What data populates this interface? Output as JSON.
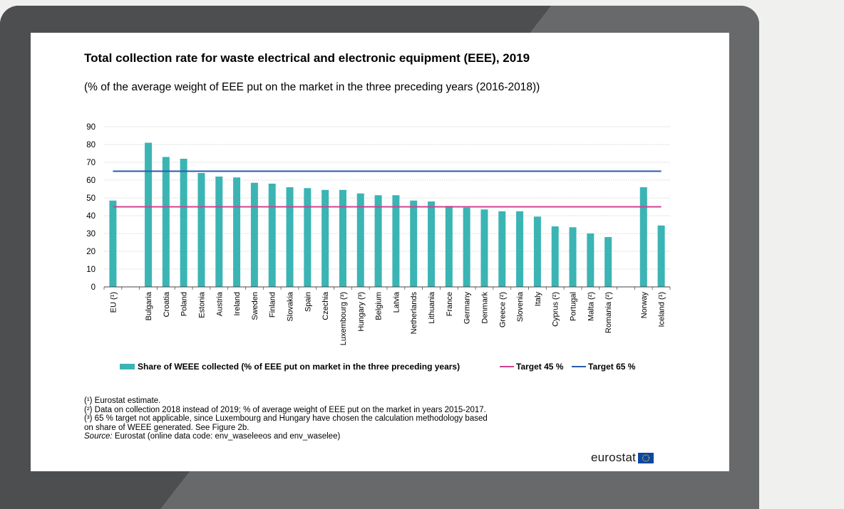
{
  "header": {
    "title": "Total collection rate for waste electrical and electronic equipment (EEE), 2019",
    "subtitle": "(% of the average weight of EEE put on the market in the three preceding years (2016-2018))"
  },
  "chart_data": {
    "type": "bar",
    "title": "Total collection rate for waste electrical and electronic equipment (EEE), 2019",
    "ylim": [
      0,
      90
    ],
    "yticks": [
      0,
      10,
      20,
      30,
      40,
      50,
      60,
      70,
      80,
      90
    ],
    "grid": true,
    "legend_position": "bottom",
    "categories": [
      "EU (¹)",
      "",
      "Bulgaria",
      "Croatia",
      "Poland",
      "Estonia",
      "Austria",
      "Ireland",
      "Sweden",
      "Finland",
      "Slovakia",
      "Spain",
      "Czechia",
      "Luxembourg (³)",
      "Hungary (³)",
      "Belgium",
      "Latvia",
      "Netherlands",
      "Lithuania",
      "France",
      "Germany",
      "Denmark",
      "Greece (²)",
      "Slovenia",
      "Italy",
      "Cyprus (²)",
      "Portugal",
      "Malta (²)",
      "Romania (²)",
      "",
      "Norway",
      "Iceland (¹)"
    ],
    "series": [
      {
        "name": "Share of WEEE collected (% of EEE put on market in the three preceding years)",
        "type": "bar",
        "color": "#3bb4b4",
        "values": [
          48.5,
          null,
          81,
          73,
          72,
          64,
          62,
          61.5,
          58.5,
          58,
          56,
          55.5,
          54.5,
          54.5,
          52.5,
          51.5,
          51.5,
          48.5,
          48,
          45.5,
          44.5,
          43.5,
          42.5,
          42.5,
          39.5,
          34,
          33.5,
          30,
          28,
          null,
          56,
          34.5
        ]
      },
      {
        "name": "Target 45 %",
        "type": "line",
        "color": "#d0418f",
        "value": 45
      },
      {
        "name": "Target 65 %",
        "type": "line",
        "color": "#2a5ca8",
        "value": 65
      }
    ]
  },
  "footnotes": {
    "note1": "(¹) Eurostat estimate.",
    "note2": "(²) Data on collection 2018 instead of 2019; % of average weight of EEE put on the market in years 2015-2017.",
    "note3a": "(³) 65 % target not applicable, since Luxembourg and Hungary have chosen the calculation methodology based",
    "note3b": "on share of WEEE generated. See Figure 2b.",
    "source_label": "Source:",
    "source_text": " Eurostat (online data code: env_waseleeos and env_waselee)"
  },
  "logo": {
    "text": "eurostat",
    "flag_color": "#0d47a1"
  }
}
